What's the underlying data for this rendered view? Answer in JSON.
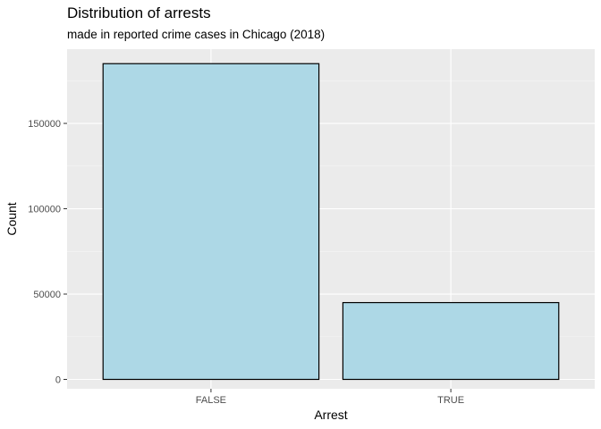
{
  "chart_data": {
    "type": "bar",
    "title": "Distribution of arrests",
    "subtitle": "made in reported crime cases in Chicago (2018)",
    "xlabel": "Arrest",
    "ylabel": "Count",
    "categories": [
      "FALSE",
      "TRUE"
    ],
    "values": [
      185000,
      45000
    ],
    "ylim": [
      -5500,
      193500
    ],
    "yticks": [
      0,
      50000,
      100000,
      150000
    ],
    "ytick_labels": [
      "0",
      "50000",
      "100000",
      "150000"
    ],
    "grid": true,
    "legend": "none",
    "colors": {
      "bar_fill": "#add8e6",
      "bar_stroke": "#000000",
      "panel_background": "#ebebeb",
      "grid_major": "#ffffff",
      "grid_minor": "#f5f5f5",
      "axis_text": "#4d4d4d",
      "axis_title": "#000000"
    }
  }
}
